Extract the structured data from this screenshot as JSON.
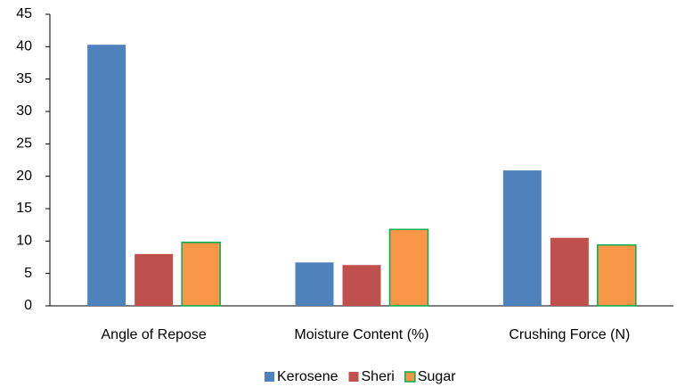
{
  "chart_data": {
    "type": "bar",
    "categories": [
      "Angle of Repose",
      "Moisture Content (%)",
      "Crushing Force (N)"
    ],
    "series": [
      {
        "name": "Kerosene",
        "color": "#4f81bd",
        "values": [
          40.3,
          6.7,
          20.9
        ]
      },
      {
        "name": "Sheri",
        "color": "#c0504d",
        "values": [
          8.0,
          6.3,
          10.5
        ]
      },
      {
        "name": "Sugar",
        "color": "#f79646",
        "edgecolor": "#00b050",
        "values": [
          9.8,
          11.8,
          9.4
        ]
      }
    ],
    "ylim": [
      0,
      45
    ],
    "yticks": [
      0,
      5,
      10,
      15,
      20,
      25,
      30,
      35,
      40,
      45
    ],
    "grid": false,
    "legend": "bottom"
  }
}
